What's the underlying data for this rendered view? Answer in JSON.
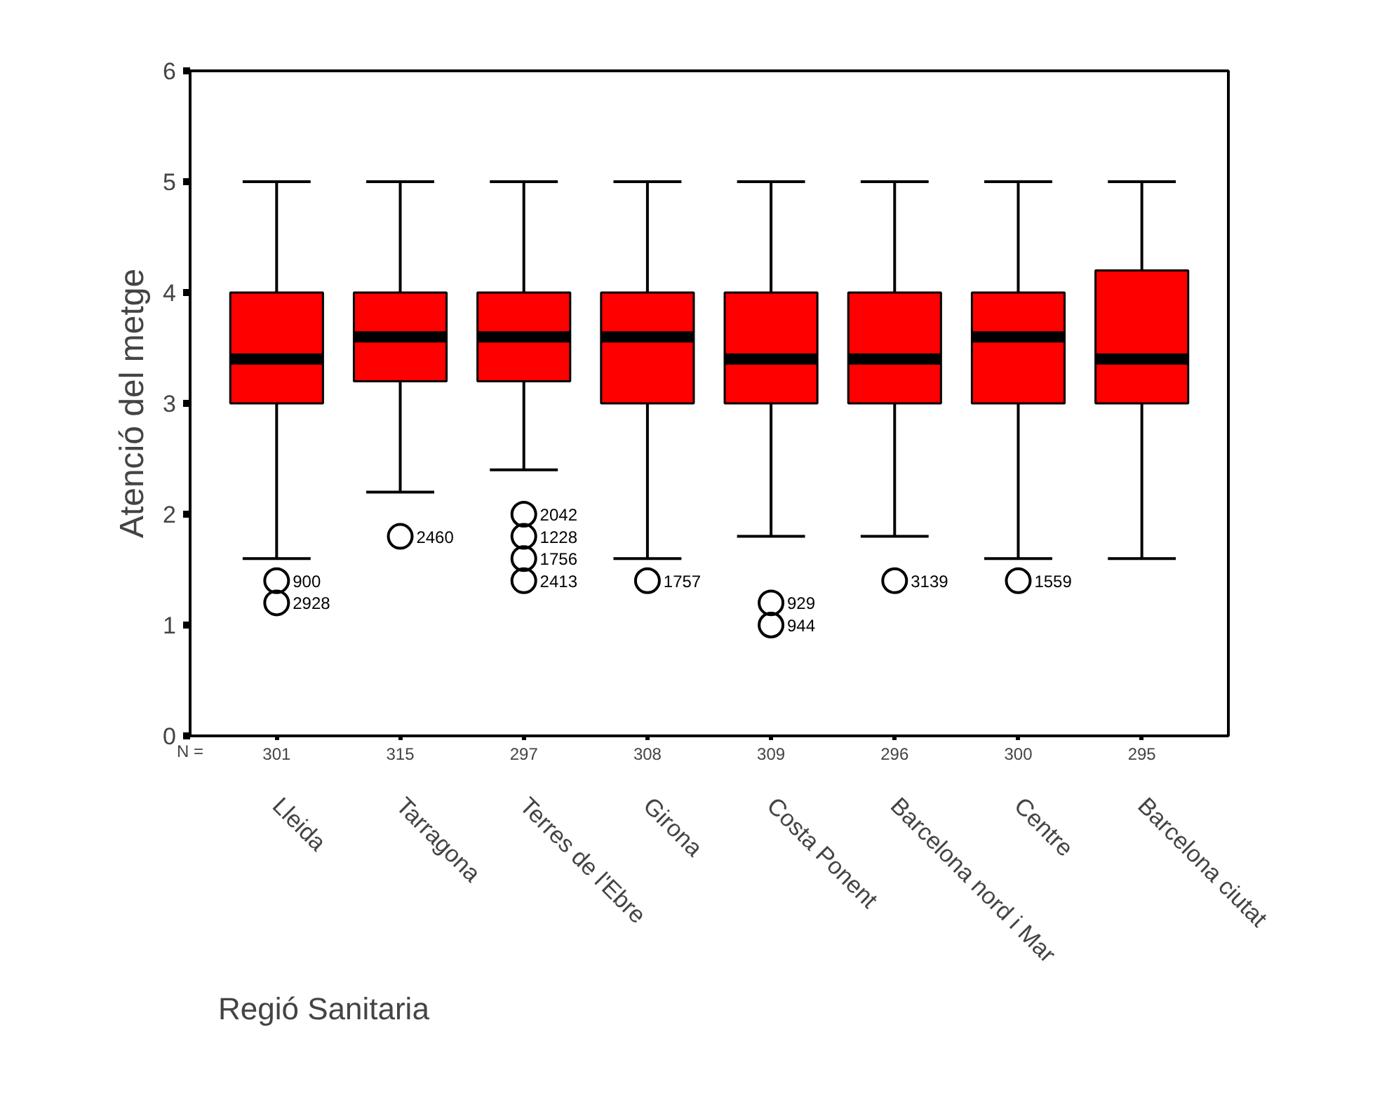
{
  "chart_data": {
    "type": "box",
    "ylabel": "Atenció del metge",
    "xlabel": "Regió Sanitaria",
    "categories": [
      "Lleida",
      "Tarragona",
      "Terres de l'Ebre",
      "Girona",
      "Costa Ponent",
      "Barcelona nord i Mar",
      "Centre",
      "Barcelona ciutat"
    ],
    "color": "#ff0000",
    "boxes": [
      {
        "low": 1.6,
        "q1": 3.0,
        "median": 3.4,
        "q3": 4.0,
        "high": 5.0,
        "outliers": [
          1.4,
          1.2
        ]
      },
      {
        "low": 2.2,
        "q1": 3.2,
        "median": 3.6,
        "q3": 4.0,
        "high": 5.0,
        "outliers": [
          1.8
        ]
      },
      {
        "low": 2.4,
        "q1": 3.2,
        "median": 3.6,
        "q3": 4.0,
        "high": 5.0,
        "outliers": [
          2.0,
          1.8,
          1.6,
          1.4
        ]
      },
      {
        "low": 1.6,
        "q1": 3.0,
        "median": 3.6,
        "q3": 4.0,
        "high": 5.0,
        "outliers": [
          1.4
        ]
      },
      {
        "low": 1.8,
        "q1": 3.0,
        "median": 3.4,
        "q3": 4.0,
        "high": 5.0,
        "outliers": [
          1.2,
          1.0
        ]
      },
      {
        "low": 1.8,
        "q1": 3.0,
        "median": 3.4,
        "q3": 4.0,
        "high": 5.0,
        "outliers": [
          1.4
        ]
      },
      {
        "low": 1.6,
        "q1": 3.0,
        "median": 3.6,
        "q3": 4.0,
        "high": 5.0,
        "outliers": [
          1.4
        ]
      },
      {
        "low": 1.6,
        "q1": 3.0,
        "median": 3.4,
        "q3": 4.2,
        "high": 5.0
      }
    ],
    "ylim": [
      0,
      6
    ],
    "yticks": [
      0,
      1,
      2,
      3,
      4,
      5,
      6
    ],
    "grid": false,
    "annotations": [
      "N =",
      "301",
      "315",
      "297",
      "308",
      "309",
      "296",
      "300",
      "295",
      "900",
      "2928",
      "2460",
      "2042",
      "1228",
      "1756",
      "2413",
      "1757",
      "929",
      "944",
      "3139",
      "1559"
    ]
  }
}
